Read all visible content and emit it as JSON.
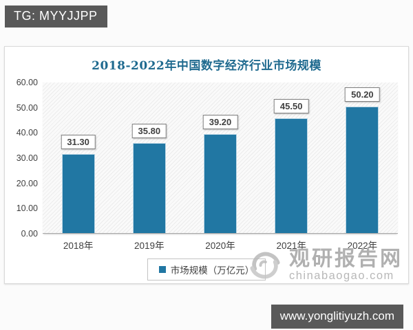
{
  "badge": {
    "text": "TG: MYYJJPP"
  },
  "banner": {
    "text": "www.yonglitiyuzh.com"
  },
  "watermark": {
    "logo": "swirl-logo",
    "name": "观研报告网",
    "domain": "chinabaogao.com"
  },
  "chart_data": {
    "type": "bar",
    "title": "2018-2022年中国数字经济行业市场规模",
    "categories": [
      "2018年",
      "2019年",
      "2020年",
      "2021年",
      "2022年"
    ],
    "values": [
      31.3,
      35.8,
      39.2,
      45.5,
      50.2
    ],
    "value_labels": [
      "31.30",
      "35.80",
      "39.20",
      "45.50",
      "50.20"
    ],
    "legend": [
      "市场规模（万亿元）"
    ],
    "legend_position": "bottom",
    "xlabel": "",
    "ylabel": "",
    "ylim": [
      0,
      60
    ],
    "ytick_interval": 10,
    "ytick_labels": [
      "60.00",
      "50.00",
      "40.00",
      "30.00",
      "20.00",
      "10.00",
      "0.00"
    ],
    "grid": false,
    "plot_background": "diagonal-hatch",
    "bar_color": "#2177a3",
    "title_color": "#1f6a8f"
  }
}
